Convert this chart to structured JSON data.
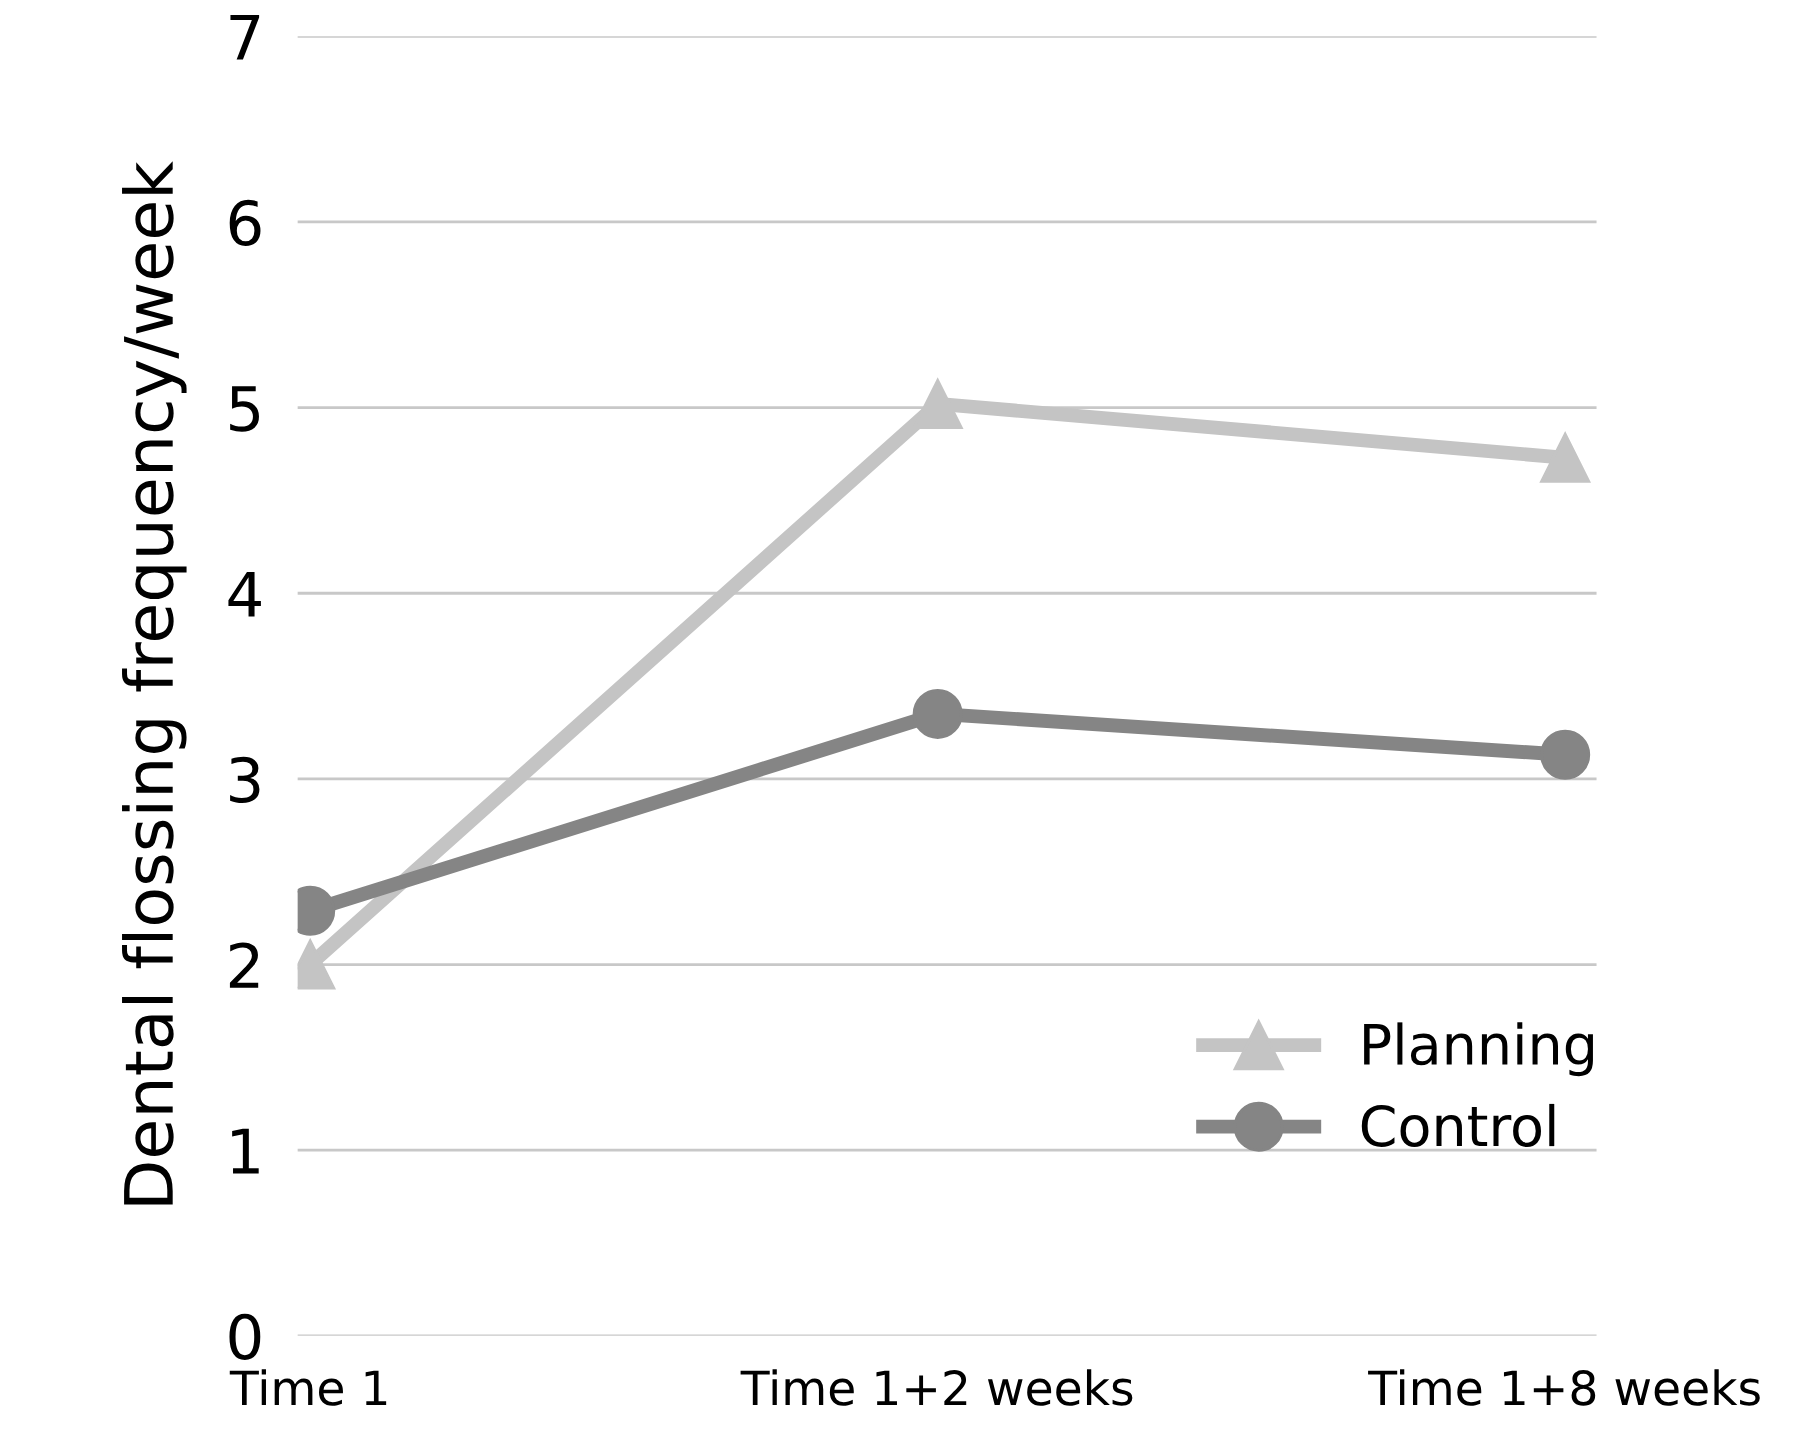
{
  "chart_data": {
    "type": "line",
    "ylabel": "Dental flossing frequency/week",
    "categories": [
      "Time 1",
      "Time 1+2 weeks",
      "Time 1+8 weeks"
    ],
    "series": [
      {
        "name": "Planning",
        "color": "#c4c4c4",
        "values": [
          2.0,
          5.02,
          4.73
        ],
        "marker": "triangle"
      },
      {
        "name": "Control",
        "color": "#858585",
        "values": [
          2.29,
          3.35,
          3.13
        ],
        "marker": "circle"
      }
    ],
    "ylim": [
      0,
      7
    ],
    "yticks": [
      0,
      1,
      2,
      3,
      4,
      5,
      6,
      7
    ],
    "grid": "y",
    "legend": "bottom right",
    "line_style": "solid"
  }
}
